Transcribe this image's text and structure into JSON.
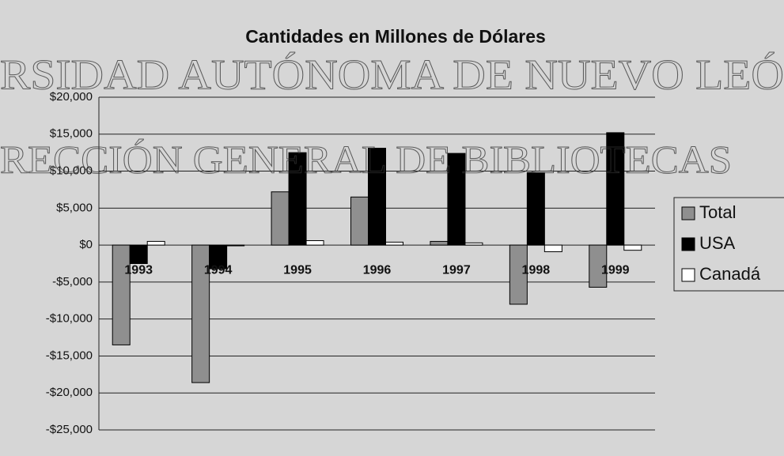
{
  "chart_data": {
    "type": "bar",
    "title": "Cantidades en Millones de Dólares",
    "annotations": [
      "RSIDAD AUTÓNOMA DE NUEVO LEÓ",
      "RECCIÓN GENERAL DE BIBLIOTECAS"
    ],
    "categories": [
      "1993",
      "1994",
      "1995",
      "1996",
      "1997",
      "1998",
      "1999"
    ],
    "series": [
      {
        "name": "Total",
        "color": "#8f8f8f",
        "values": [
          -13500,
          -18600,
          7200,
          6500,
          500,
          -8000,
          -5700
        ]
      },
      {
        "name": "USA",
        "color": "#000000",
        "values": [
          -2500,
          -3200,
          12500,
          13100,
          12400,
          9800,
          15200
        ]
      },
      {
        "name": "Canadá",
        "color": "#ffffff",
        "values": [
          500,
          -100,
          600,
          400,
          300,
          -900,
          -700
        ]
      }
    ],
    "ylim": [
      -25000,
      20000
    ],
    "yticks": [
      {
        "value": -25000,
        "label": "-$25,000"
      },
      {
        "value": -20000,
        "label": "-$20,000"
      },
      {
        "value": -15000,
        "label": "-$15,000"
      },
      {
        "value": -10000,
        "label": "-$10,000"
      },
      {
        "value": -5000,
        "label": "-$5,000"
      },
      {
        "value": 0,
        "label": "$0"
      },
      {
        "value": 5000,
        "label": "$5,000"
      },
      {
        "value": 10000,
        "label": "$10,000"
      },
      {
        "value": 15000,
        "label": "$15,000"
      },
      {
        "value": 20000,
        "label": "$20,000"
      }
    ],
    "grid": true,
    "legend": "right"
  }
}
